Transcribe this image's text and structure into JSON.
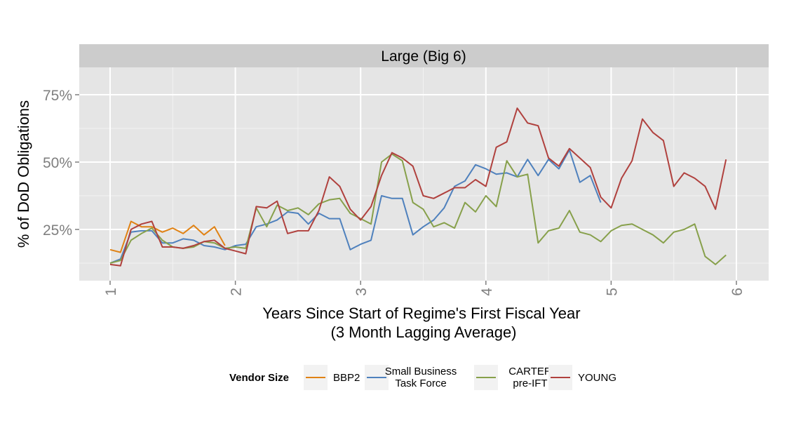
{
  "chart_data": {
    "type": "line",
    "panel_title": "Large (Big 6)",
    "xlabel": [
      "Years Since Start of Regime's First Fiscal Year",
      "(3 Month Lagging Average)"
    ],
    "ylabel": "% of DoD Obligations",
    "xlim": [
      0.75,
      6.2
    ],
    "ylim": [
      0.08,
      0.88
    ],
    "x_ticks": [
      1,
      2,
      3,
      4,
      5,
      6
    ],
    "x_tick_labels": [
      "1",
      "2",
      "3",
      "4",
      "5",
      "6"
    ],
    "y_ticks": [
      0.25,
      0.5,
      0.75
    ],
    "y_tick_labels": [
      "25%",
      "50%",
      "75%"
    ],
    "grid": true,
    "legend": {
      "title": "Vendor Size",
      "position": "bottom",
      "entries": [
        {
          "label": [
            "BBP2"
          ],
          "color": "#e08214"
        },
        {
          "label": [
            "Small Business",
            "Task Force"
          ],
          "color": "#4f81bd"
        },
        {
          "label": [
            "CARTER",
            "pre-IFT"
          ],
          "color": "#87a04b"
        },
        {
          "label": [
            "YOUNG"
          ],
          "color": "#b0413e"
        }
      ]
    },
    "series": [
      {
        "name": "BBP2",
        "color": "#e08214",
        "x": [
          1.0,
          1.083,
          1.167,
          1.25,
          1.333,
          1.417,
          1.5,
          1.583,
          1.667,
          1.75,
          1.833,
          1.917
        ],
        "y": [
          0.175,
          0.165,
          0.28,
          0.26,
          0.26,
          0.24,
          0.255,
          0.235,
          0.265,
          0.23,
          0.26,
          0.19
        ]
      },
      {
        "name": "Small Business Task Force",
        "color": "#4f81bd",
        "x": [
          1.0,
          1.083,
          1.167,
          1.25,
          1.333,
          1.417,
          1.5,
          1.583,
          1.667,
          1.75,
          1.833,
          1.917,
          2.0,
          2.083,
          2.167,
          2.25,
          2.333,
          2.417,
          2.5,
          2.583,
          2.667,
          2.75,
          2.833,
          2.917,
          3.0,
          3.083,
          3.167,
          3.25,
          3.333,
          3.417,
          3.5,
          3.583,
          3.667,
          3.75,
          3.833,
          3.917,
          4.0,
          4.083,
          4.167,
          4.25,
          4.333,
          4.417,
          4.5,
          4.583,
          4.667,
          4.75,
          4.833,
          4.917
        ],
        "y": [
          0.125,
          0.14,
          0.24,
          0.245,
          0.245,
          0.2,
          0.2,
          0.215,
          0.21,
          0.19,
          0.185,
          0.175,
          0.19,
          0.195,
          0.26,
          0.27,
          0.285,
          0.315,
          0.31,
          0.27,
          0.31,
          0.29,
          0.29,
          0.175,
          0.195,
          0.21,
          0.375,
          0.365,
          0.365,
          0.23,
          0.26,
          0.285,
          0.33,
          0.41,
          0.43,
          0.49,
          0.475,
          0.455,
          0.46,
          0.445,
          0.51,
          0.45,
          0.51,
          0.475,
          0.545,
          0.425,
          0.45,
          0.35
        ]
      },
      {
        "name": "CARTER pre-IFT",
        "color": "#87a04b",
        "x": [
          1.0,
          1.083,
          1.167,
          1.25,
          1.333,
          1.417,
          1.5,
          1.583,
          1.667,
          1.75,
          1.833,
          1.917,
          2.0,
          2.083,
          2.167,
          2.25,
          2.333,
          2.417,
          2.5,
          2.583,
          2.667,
          2.75,
          2.833,
          2.917,
          3.0,
          3.083,
          3.167,
          3.25,
          3.333,
          3.417,
          3.5,
          3.583,
          3.667,
          3.75,
          3.833,
          3.917,
          4.0,
          4.083,
          4.167,
          4.25,
          4.333,
          4.417,
          4.5,
          4.583,
          4.667,
          4.75,
          4.833,
          4.917,
          5.0,
          5.083,
          5.167,
          5.25,
          5.333,
          5.417,
          5.5,
          5.583,
          5.667,
          5.75,
          5.833,
          5.917
        ],
        "y": [
          0.125,
          0.135,
          0.21,
          0.235,
          0.255,
          0.21,
          0.185,
          0.18,
          0.185,
          0.205,
          0.2,
          0.18,
          0.185,
          0.18,
          0.33,
          0.26,
          0.34,
          0.32,
          0.33,
          0.305,
          0.345,
          0.36,
          0.365,
          0.31,
          0.29,
          0.27,
          0.5,
          0.53,
          0.505,
          0.35,
          0.325,
          0.26,
          0.275,
          0.255,
          0.35,
          0.315,
          0.375,
          0.335,
          0.505,
          0.445,
          0.455,
          0.2,
          0.245,
          0.255,
          0.32,
          0.24,
          0.23,
          0.205,
          0.245,
          0.265,
          0.27,
          0.25,
          0.23,
          0.2,
          0.24,
          0.25,
          0.27,
          0.15,
          0.12,
          0.155
        ]
      },
      {
        "name": "YOUNG",
        "color": "#b0413e",
        "x": [
          1.0,
          1.083,
          1.167,
          1.25,
          1.333,
          1.417,
          1.5,
          1.583,
          1.667,
          1.75,
          1.833,
          1.917,
          2.0,
          2.083,
          2.167,
          2.25,
          2.333,
          2.417,
          2.5,
          2.583,
          2.667,
          2.75,
          2.833,
          2.917,
          3.0,
          3.083,
          3.167,
          3.25,
          3.333,
          3.417,
          3.5,
          3.583,
          3.667,
          3.75,
          3.833,
          3.917,
          4.0,
          4.083,
          4.167,
          4.25,
          4.333,
          4.417,
          4.5,
          4.583,
          4.667,
          4.75,
          4.833,
          4.917,
          5.0,
          5.083,
          5.167,
          5.25,
          5.333,
          5.417,
          5.5,
          5.583,
          5.667,
          5.75,
          5.833,
          5.917
        ],
        "y": [
          0.12,
          0.115,
          0.25,
          0.27,
          0.28,
          0.185,
          0.185,
          0.18,
          0.19,
          0.205,
          0.21,
          0.18,
          0.17,
          0.16,
          0.335,
          0.33,
          0.355,
          0.235,
          0.245,
          0.245,
          0.32,
          0.445,
          0.41,
          0.325,
          0.285,
          0.335,
          0.45,
          0.535,
          0.515,
          0.485,
          0.375,
          0.365,
          0.385,
          0.405,
          0.405,
          0.435,
          0.41,
          0.555,
          0.575,
          0.7,
          0.645,
          0.635,
          0.515,
          0.485,
          0.55,
          0.515,
          0.48,
          0.37,
          0.33,
          0.44,
          0.505,
          0.66,
          0.61,
          0.58,
          0.41,
          0.46,
          0.44,
          0.41,
          0.325,
          0.51
        ]
      }
    ]
  }
}
